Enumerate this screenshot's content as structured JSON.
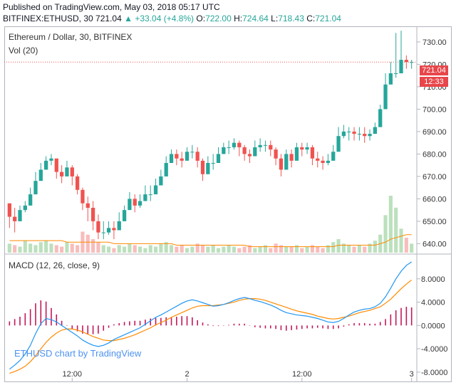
{
  "header": {
    "published": "Published on TradingView.com, May 03, 2018 05:17 UTC",
    "symbol": "BITFINEX:ETHUSD, 30",
    "last": "721.04",
    "change": "+33.04 (+4.8%)",
    "o_label": "O:",
    "o_value": "722.00",
    "h_label": "H:",
    "h_value": "724.64",
    "l_label": "L:",
    "l_value": "718.43",
    "c_label": "C:",
    "c_value": "721.04"
  },
  "price_panel": {
    "title": "Ethereum / Dollar, 30, BITFINEX",
    "vol_label": "Vol (20)",
    "last_price_tag": "721.04",
    "countdown_tag": "12:33"
  },
  "macd_panel": {
    "title": "MACD (12, 26, close, 9)"
  },
  "watermark": "ETHUSD chart by TradingView",
  "colors": {
    "up": "#26a69a",
    "down": "#ef5350",
    "macd": "#2196f3",
    "signal": "#ff8a00",
    "hist": "#c2185b",
    "vol_ma": "#ff8a00"
  },
  "chart_data": [
    {
      "type": "candlestick",
      "series": [
        {
          "name": "BITFINEX:ETHUSD, 30"
        }
      ],
      "ylim": [
        636,
        736
      ],
      "y_ticks": [
        "730.00",
        "720.00",
        "710.00",
        "700.00",
        "690.00",
        "680.00",
        "670.00",
        "660.00",
        "650.00",
        "640.00"
      ],
      "x_ticks": [
        "12:00",
        "2",
        "12:00",
        "3"
      ],
      "close": [
        652,
        650,
        655,
        657,
        662,
        668,
        673,
        677,
        678,
        672,
        670,
        674,
        670,
        664,
        658,
        656,
        650,
        645,
        645,
        647,
        646,
        650,
        655,
        660,
        657,
        659,
        662,
        662,
        666,
        670,
        676,
        680,
        678,
        677,
        681,
        681,
        677,
        671,
        676,
        676,
        680,
        683,
        683,
        685,
        683,
        680,
        679,
        683,
        684,
        684,
        682,
        678,
        673,
        680,
        677,
        683,
        682,
        683,
        678,
        677,
        676,
        677,
        681,
        688,
        690,
        690,
        689,
        689,
        688,
        689,
        692,
        700,
        711,
        716,
        716,
        722,
        721,
        721
      ],
      "high": [
        658,
        656,
        657,
        659,
        665,
        672,
        676,
        679,
        680,
        677,
        675,
        677,
        675,
        671,
        665,
        661,
        659,
        653,
        650,
        650,
        650,
        654,
        657,
        663,
        662,
        662,
        666,
        666,
        669,
        673,
        679,
        682,
        682,
        681,
        683,
        684,
        683,
        678,
        679,
        680,
        683,
        685,
        686,
        687,
        686,
        684,
        682,
        686,
        687,
        686,
        686,
        683,
        680,
        682,
        682,
        685,
        685,
        685,
        684,
        681,
        679,
        680,
        684,
        692,
        693,
        692,
        692,
        692,
        692,
        691,
        694,
        702,
        716,
        721,
        734,
        735,
        724,
        722
      ],
      "low": [
        647,
        645,
        652,
        654,
        658,
        664,
        670,
        674,
        675,
        669,
        667,
        671,
        666,
        662,
        655,
        650,
        646,
        642,
        642,
        644,
        642,
        647,
        652,
        656,
        654,
        656,
        659,
        659,
        663,
        667,
        673,
        677,
        675,
        674,
        678,
        678,
        674,
        668,
        671,
        673,
        677,
        680,
        680,
        682,
        679,
        677,
        676,
        680,
        681,
        681,
        679,
        675,
        670,
        676,
        674,
        679,
        679,
        680,
        675,
        674,
        673,
        675,
        678,
        685,
        687,
        686,
        686,
        686,
        685,
        686,
        689,
        697,
        709,
        713,
        714,
        719,
        718,
        718
      ],
      "volume": [
        6,
        5,
        4,
        8,
        6,
        5,
        7,
        8,
        6,
        5,
        4,
        7,
        6,
        5,
        14,
        12,
        9,
        7,
        5,
        4,
        3,
        5,
        4,
        6,
        5,
        4,
        3,
        5,
        4,
        6,
        7,
        5,
        4,
        5,
        3,
        4,
        6,
        5,
        4,
        5,
        3,
        4,
        5,
        4,
        3,
        4,
        5,
        3,
        4,
        5,
        3,
        6,
        5,
        4,
        4,
        5,
        3,
        4,
        5,
        4,
        3,
        5,
        7,
        9,
        6,
        5,
        4,
        5,
        4,
        6,
        8,
        12,
        25,
        38,
        30,
        16,
        10,
        6
      ],
      "volume_ma": [
        8,
        8,
        8,
        8,
        8,
        8,
        8,
        8,
        8,
        8,
        8,
        7,
        7,
        7,
        7,
        7,
        7,
        7,
        7,
        7,
        6,
        6,
        6,
        6,
        6,
        6,
        6,
        6,
        6,
        6,
        6,
        6,
        5,
        5,
        5,
        5,
        5,
        5,
        5,
        5,
        5,
        5,
        5,
        5,
        5,
        5,
        4,
        4,
        4,
        4,
        4,
        4,
        4,
        4,
        4,
        4,
        4,
        4,
        4,
        4,
        4,
        4,
        4,
        5,
        5,
        5,
        5,
        5,
        5,
        5,
        5,
        6,
        7,
        9,
        10,
        11,
        12,
        12
      ]
    },
    {
      "type": "line",
      "series": [
        {
          "name": "MACD",
          "values": [
            -7.5,
            -6.8,
            -6.0,
            -4.9,
            -3.4,
            -1.4,
            0.3,
            1.2,
            1.0,
            0.6,
            0.0,
            -0.6,
            -1.2,
            -1.8,
            -2.5,
            -3.0,
            -3.4,
            -3.6,
            -3.4,
            -3.0,
            -2.4,
            -2.0,
            -1.6,
            -1.2,
            -0.8,
            -0.4,
            0.2,
            0.8,
            1.4,
            1.8,
            2.3,
            2.8,
            3.3,
            3.8,
            4.2,
            4.4,
            4.2,
            3.9,
            3.6,
            3.3,
            3.4,
            3.6,
            3.9,
            4.3,
            4.6,
            4.8,
            4.6,
            4.3,
            4.1,
            3.8,
            3.5,
            3.1,
            2.6,
            2.2,
            2.0,
            1.8,
            1.7,
            1.6,
            1.4,
            1.2,
            0.9,
            0.6,
            0.5,
            0.7,
            1.2,
            1.8,
            2.3,
            2.6,
            2.8,
            2.9,
            3.2,
            3.8,
            4.9,
            6.4,
            8.0,
            9.3,
            10.3,
            10.9
          ]
        },
        {
          "name": "Signal",
          "values": [
            -8.2,
            -7.9,
            -7.5,
            -7.0,
            -6.2,
            -5.2,
            -4.0,
            -2.9,
            -2.0,
            -1.3,
            -0.8,
            -0.6,
            -0.6,
            -0.8,
            -1.1,
            -1.5,
            -1.9,
            -2.2,
            -2.5,
            -2.6,
            -2.6,
            -2.4,
            -2.2,
            -1.9,
            -1.6,
            -1.2,
            -0.8,
            -0.4,
            0.1,
            0.5,
            0.9,
            1.4,
            1.8,
            2.2,
            2.6,
            3.0,
            3.3,
            3.4,
            3.4,
            3.4,
            3.5,
            3.6,
            3.8,
            4.0,
            4.3,
            4.5,
            4.6,
            4.6,
            4.5,
            4.3,
            4.0,
            3.7,
            3.4,
            3.1,
            2.8,
            2.5,
            2.3,
            2.1,
            1.9,
            1.6,
            1.4,
            1.2,
            1.1,
            1.2,
            1.4,
            1.6,
            1.9,
            2.2,
            2.4,
            2.6,
            2.9,
            3.2,
            3.8,
            4.5,
            5.4,
            6.3,
            7.1,
            7.8
          ]
        }
      ],
      "ylim": [
        -9.6,
        12.0
      ],
      "y_ticks": [
        "8.0000",
        "4.0000",
        "0.0000",
        "-4.0000",
        "-8.0000"
      ]
    }
  ]
}
